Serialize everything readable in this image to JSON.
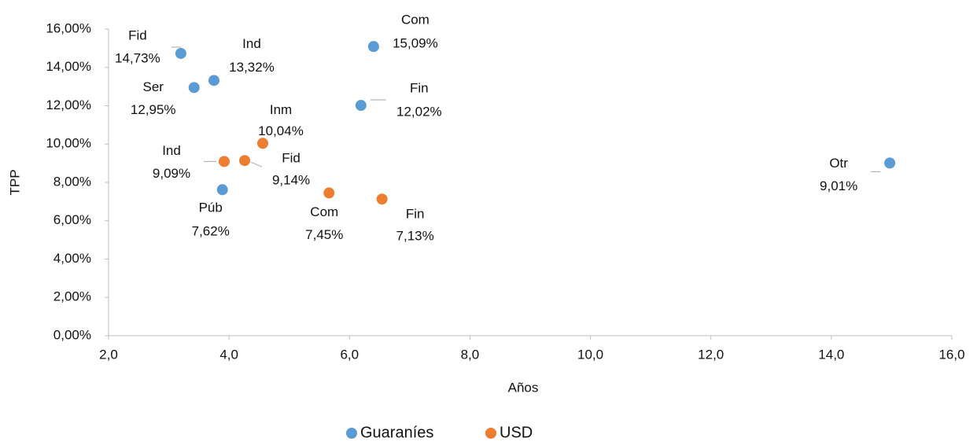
{
  "chart_data": {
    "type": "scatter",
    "x_label": "Años",
    "y_label": "TPP",
    "xlim": [
      2,
      16
    ],
    "xticks": [
      {
        "value": 2,
        "label": "2,0"
      },
      {
        "value": 4,
        "label": "4,0"
      },
      {
        "value": 6,
        "label": "6,0"
      },
      {
        "value": 8,
        "label": "8,0"
      },
      {
        "value": 10,
        "label": "10,0"
      },
      {
        "value": 12,
        "label": "12,0"
      },
      {
        "value": 14,
        "label": "14,0"
      },
      {
        "value": 16,
        "label": "16,0"
      }
    ],
    "ylim": [
      0,
      16
    ],
    "yticks": [
      {
        "value": 0,
        "label": "0,00%"
      },
      {
        "value": 2,
        "label": "2,00%"
      },
      {
        "value": 4,
        "label": "4,00%"
      },
      {
        "value": 6,
        "label": "6,00%"
      },
      {
        "value": 8,
        "label": "8,00%"
      },
      {
        "value": 10,
        "label": "10,00%"
      },
      {
        "value": 12,
        "label": "12,00%"
      },
      {
        "value": 14,
        "label": "14,00%"
      },
      {
        "value": 16,
        "label": "16,00%"
      }
    ],
    "legend": "bottom",
    "series": [
      {
        "name": "Guaraníes",
        "color": "#5b9bd5",
        "labels": [
          "Fid",
          "Ind",
          "Ser",
          "Com",
          "Fin",
          "Púb",
          "Otr"
        ],
        "x": [
          3.2,
          3.75,
          3.42,
          6.4,
          6.19,
          3.89,
          14.97
        ],
        "values": [
          14.73,
          13.32,
          12.95,
          15.09,
          12.02,
          7.62,
          9.01
        ],
        "value_labels": [
          "14,73%",
          "13,32%",
          "12,95%",
          "15,09%",
          "12,02%",
          "7,62%",
          "9,01%"
        ]
      },
      {
        "name": "USD",
        "color": "#ed7d31",
        "labels": [
          "Inm",
          "Ind",
          "Fid",
          "Com",
          "Fin"
        ],
        "x": [
          4.56,
          3.92,
          4.26,
          5.66,
          6.54
        ],
        "values": [
          10.04,
          9.09,
          9.14,
          7.45,
          7.13
        ],
        "value_labels": [
          "10,04%",
          "9,09%",
          "9,14%",
          "7,45%",
          "7,13%"
        ]
      }
    ]
  }
}
